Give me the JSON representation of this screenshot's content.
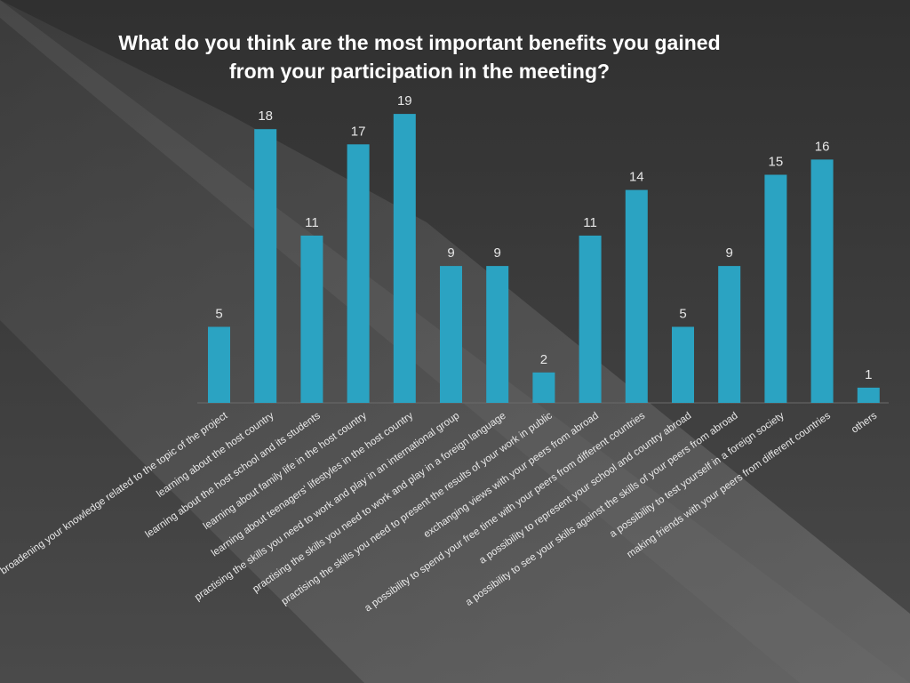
{
  "chart_data": {
    "type": "bar",
    "title": "What do you think are the most important benefits you gained from your participation in the meeting?",
    "title_lines": [
      "What do you think are the most important benefits you gained",
      "from your participation in the meeting?"
    ],
    "categories": [
      "broadening your knowledge related to the topic of the project",
      "learning about the host country",
      "learning about the host school and its students",
      "learning about family life in the host country",
      "learning about teenagers' lifestyles in the host country",
      "practising the skills you need to work and play in an international group",
      "practising the skills you need to work and play in a foreign language",
      "practising the skills you need to present the results of your work in public",
      "exchanging views with your peers from abroad",
      "a possibility to spend your free time with your peers from different countries",
      "a possibility to represent your school and country abroad",
      "a possibility to see your skills against the skills of your peers from abroad",
      "a possibility to test yourself in a foreign society",
      "making  friends with your peers from different countries",
      "others"
    ],
    "values": [
      5,
      18,
      11,
      17,
      19,
      9,
      9,
      2,
      11,
      14,
      5,
      9,
      15,
      16,
      1
    ],
    "ylim": [
      0,
      20
    ],
    "grid": false,
    "legend": "none",
    "bar_color": "#2ba3c2"
  }
}
